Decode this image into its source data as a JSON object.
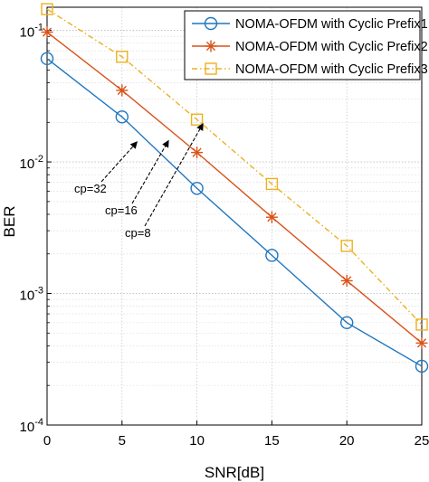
{
  "chart_data": {
    "type": "line",
    "xlabel": "SNR[dB]",
    "ylabel": "BER",
    "x": [
      0,
      5,
      10,
      15,
      20,
      25
    ],
    "xlim": [
      0,
      25
    ],
    "ylim": [
      0.0001,
      0.15
    ],
    "yscale": "log",
    "x_ticks": [
      "0",
      "5",
      "10",
      "15",
      "20",
      "25"
    ],
    "y_ticks": [
      {
        "base": "10",
        "exp": "-1",
        "value": 0.1
      },
      {
        "base": "10",
        "exp": "-2",
        "value": 0.01
      },
      {
        "base": "10",
        "exp": "-3",
        "value": 0.001
      },
      {
        "base": "10",
        "exp": "-4",
        "value": 0.0001
      }
    ],
    "grid": true,
    "legend_position": "top-right",
    "series": [
      {
        "name": "NOMA-OFDM with Cyclic Prefix1",
        "color": "#1f77c0",
        "marker": "circle",
        "dash": "solid",
        "values": [
          0.061,
          0.022,
          0.0063,
          0.00195,
          0.0006,
          0.00028
        ]
      },
      {
        "name": "NOMA-OFDM with Cyclic Prefix2",
        "color": "#d95319",
        "marker": "asterisk",
        "dash": "solid",
        "values": [
          0.097,
          0.035,
          0.0118,
          0.0038,
          0.00125,
          0.00042
        ]
      },
      {
        "name": "NOMA-OFDM with Cyclic Prefix3",
        "color": "#edb120",
        "marker": "square",
        "dash": "dashdot",
        "values": [
          0.145,
          0.063,
          0.021,
          0.0068,
          0.0023,
          0.00058
        ]
      }
    ],
    "annotations": [
      {
        "text": "cp=32",
        "arrow_x": 6.0,
        "arrow_y": 0.0142
      },
      {
        "text": "cp=16",
        "arrow_x": 8.1,
        "arrow_y": 0.0145
      },
      {
        "text": "cp=8",
        "arrow_x": 10.4,
        "arrow_y": 0.0195
      }
    ]
  }
}
